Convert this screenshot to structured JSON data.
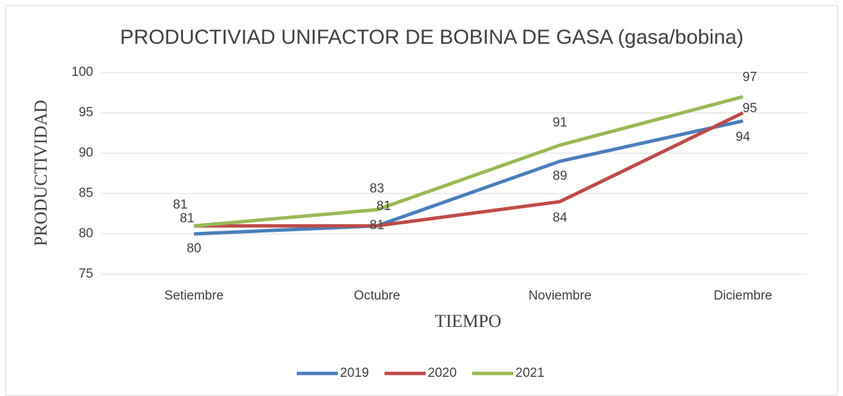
{
  "chart_data": {
    "type": "line",
    "title": "PRODUCTIVIAD UNIFACTOR DE BOBINA DE GASA (gasa/bobina)",
    "x_label": "TIEMPO",
    "y_label": "PRODUCTIVIDAD",
    "categories": [
      "Setiembre",
      "Octubre",
      "Noviembre",
      "Diciembre"
    ],
    "series": [
      {
        "name": "2019",
        "color": "#4a7ebb",
        "values": [
          80,
          81,
          89,
          94
        ]
      },
      {
        "name": "2020",
        "color": "#be4b48",
        "values": [
          81,
          81,
          84,
          95
        ]
      },
      {
        "name": "2021",
        "color": "#98b954",
        "values": [
          81,
          83,
          91,
          97
        ]
      }
    ],
    "ylim": [
      75,
      100
    ],
    "yticks": [
      75,
      80,
      85,
      90,
      95,
      100
    ],
    "grid": true,
    "legend": "bottom"
  }
}
